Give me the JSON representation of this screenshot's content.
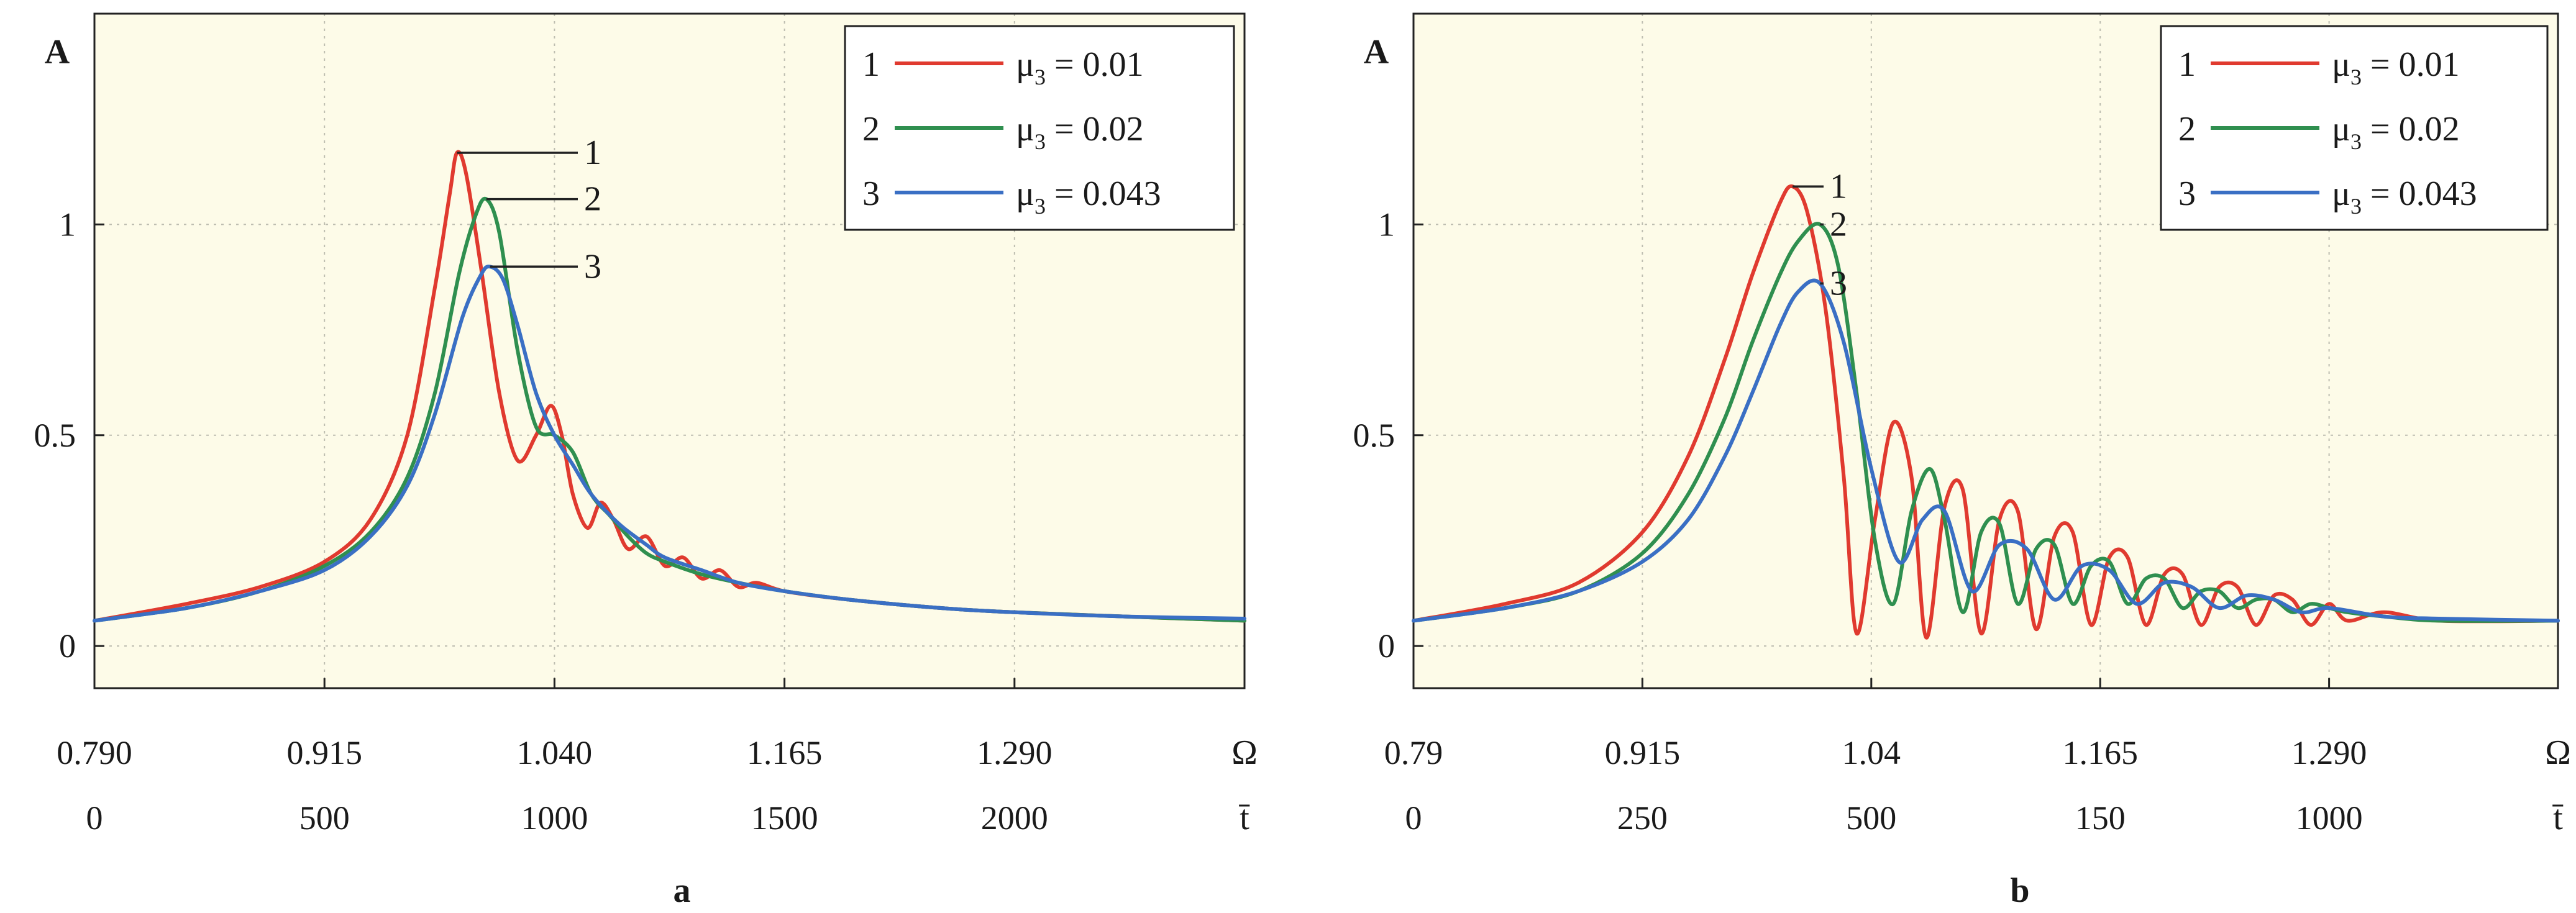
{
  "figure": {
    "panels": [
      {
        "id": "a",
        "panel_label": "a",
        "y_label": "A",
        "x_label": "Ω",
        "t_label": "t̄",
        "y_ticks": [
          "0",
          "0.5",
          "1"
        ],
        "x_ticks": [
          "0.790",
          "0.915",
          "1.040",
          "1.165",
          "1.290"
        ],
        "t_ticks": [
          "0",
          "500",
          "1000",
          "1500",
          "2000"
        ],
        "curve_labels": [
          "1",
          "2",
          "3"
        ],
        "legend": [
          {
            "num": "1",
            "mu": "μ",
            "sub": "3",
            "value": "= 0.01",
            "color": "#e03a2f"
          },
          {
            "num": "2",
            "mu": "μ",
            "sub": "3",
            "value": "= 0.02",
            "color": "#2f8f4f"
          },
          {
            "num": "3",
            "mu": "μ",
            "sub": "3",
            "value": "= 0.043",
            "color": "#3a6fc4"
          }
        ]
      },
      {
        "id": "b",
        "panel_label": "b",
        "y_label": "A",
        "x_label": "Ω",
        "t_label": "t̄",
        "y_ticks": [
          "0",
          "0.5",
          "1"
        ],
        "x_ticks": [
          "0.79",
          "0.915",
          "1.04",
          "1.165",
          "1.290"
        ],
        "t_ticks": [
          "0",
          "250",
          "500",
          "150",
          "1000"
        ],
        "curve_labels": [
          "1",
          "2",
          "3"
        ],
        "legend": [
          {
            "num": "1",
            "mu": "μ",
            "sub": "3",
            "value": "= 0.01",
            "color": "#e03a2f"
          },
          {
            "num": "2",
            "mu": "μ",
            "sub": "3",
            "value": "= 0.02",
            "color": "#2f8f4f"
          },
          {
            "num": "3",
            "mu": "μ",
            "sub": "3",
            "value": "= 0.043",
            "color": "#3a6fc4"
          }
        ]
      }
    ]
  },
  "chart_data": [
    {
      "type": "line",
      "panel": "a",
      "xlabel": "Ω",
      "ylabel": "A",
      "xlim": [
        0.79,
        1.415
      ],
      "ylim": [
        -0.1,
        1.5
      ],
      "xticks": [
        0.79,
        0.915,
        1.04,
        1.165,
        1.29
      ],
      "yticks": [
        0,
        0.5,
        1
      ],
      "secondary_x": {
        "label": "t̄",
        "ticks": [
          "0",
          "500",
          "1000",
          "1500",
          "2000"
        ]
      },
      "grid": true,
      "legend_position": "top-right",
      "series": [
        {
          "name": "μ3 = 0.01",
          "label": "1",
          "color": "#e03a2f",
          "peak": {
            "x": 0.987,
            "y": 1.17
          },
          "x": [
            0.79,
            0.84,
            0.88,
            0.915,
            0.94,
            0.96,
            0.975,
            0.983,
            0.987,
            0.992,
            1.0,
            1.01,
            1.02,
            1.03,
            1.038,
            1.044,
            1.05,
            1.058,
            1.065,
            1.072,
            1.08,
            1.09,
            1.1,
            1.11,
            1.12,
            1.13,
            1.14,
            1.15,
            1.165,
            1.2,
            1.25,
            1.29,
            1.35,
            1.415
          ],
          "y": [
            0.06,
            0.1,
            0.14,
            0.2,
            0.3,
            0.5,
            0.85,
            1.07,
            1.17,
            1.12,
            0.9,
            0.6,
            0.44,
            0.5,
            0.57,
            0.5,
            0.36,
            0.28,
            0.34,
            0.3,
            0.23,
            0.26,
            0.19,
            0.21,
            0.16,
            0.18,
            0.14,
            0.15,
            0.13,
            0.11,
            0.09,
            0.08,
            0.07,
            0.06
          ]
        },
        {
          "name": "μ3 = 0.02",
          "label": "2",
          "color": "#2f8f4f",
          "peak": {
            "x": 1.003,
            "y": 1.06
          },
          "x": [
            0.79,
            0.84,
            0.88,
            0.915,
            0.94,
            0.96,
            0.975,
            0.988,
            0.997,
            1.003,
            1.01,
            1.02,
            1.03,
            1.04,
            1.05,
            1.06,
            1.07,
            1.08,
            1.09,
            1.1,
            1.12,
            1.14,
            1.165,
            1.2,
            1.25,
            1.29,
            1.35,
            1.415
          ],
          "y": [
            0.06,
            0.09,
            0.13,
            0.19,
            0.27,
            0.4,
            0.6,
            0.88,
            1.02,
            1.06,
            0.98,
            0.7,
            0.52,
            0.5,
            0.46,
            0.36,
            0.31,
            0.26,
            0.22,
            0.2,
            0.17,
            0.15,
            0.13,
            0.11,
            0.09,
            0.08,
            0.07,
            0.06
          ]
        },
        {
          "name": "μ3 = 0.043",
          "label": "3",
          "color": "#3a6fc4",
          "peak": {
            "x": 1.005,
            "y": 0.9
          },
          "x": [
            0.79,
            0.84,
            0.88,
            0.915,
            0.94,
            0.96,
            0.975,
            0.99,
            1.0,
            1.005,
            1.012,
            1.02,
            1.03,
            1.04,
            1.05,
            1.06,
            1.075,
            1.09,
            1.1,
            1.12,
            1.14,
            1.165,
            1.2,
            1.25,
            1.29,
            1.35,
            1.415
          ],
          "y": [
            0.06,
            0.09,
            0.13,
            0.18,
            0.26,
            0.38,
            0.55,
            0.78,
            0.88,
            0.9,
            0.87,
            0.76,
            0.6,
            0.5,
            0.43,
            0.36,
            0.29,
            0.24,
            0.21,
            0.18,
            0.15,
            0.13,
            0.11,
            0.09,
            0.08,
            0.07,
            0.065
          ]
        }
      ]
    },
    {
      "type": "line",
      "panel": "b",
      "xlabel": "Ω",
      "ylabel": "A",
      "xlim": [
        0.79,
        1.415
      ],
      "ylim": [
        -0.1,
        1.5
      ],
      "xticks": [
        0.79,
        0.915,
        1.04,
        1.165,
        1.29
      ],
      "yticks": [
        0,
        0.5,
        1
      ],
      "secondary_x": {
        "label": "t̄",
        "ticks": [
          "0",
          "250",
          "500",
          "150",
          "1000"
        ]
      },
      "grid": true,
      "legend_position": "top-right",
      "series": [
        {
          "name": "μ3 = 0.01",
          "label": "1",
          "color": "#e03a2f",
          "peak": {
            "x": 0.997,
            "y": 1.09
          },
          "x": [
            0.79,
            0.84,
            0.88,
            0.915,
            0.94,
            0.96,
            0.975,
            0.99,
            0.997,
            1.005,
            1.015,
            1.025,
            1.032,
            1.042,
            1.052,
            1.062,
            1.07,
            1.08,
            1.09,
            1.1,
            1.11,
            1.12,
            1.13,
            1.14,
            1.15,
            1.16,
            1.17,
            1.18,
            1.19,
            1.2,
            1.21,
            1.22,
            1.23,
            1.24,
            1.25,
            1.26,
            1.27,
            1.28,
            1.29,
            1.3,
            1.32,
            1.35,
            1.415
          ],
          "y": [
            0.06,
            0.1,
            0.15,
            0.27,
            0.45,
            0.68,
            0.88,
            1.05,
            1.09,
            1.03,
            0.8,
            0.4,
            0.03,
            0.3,
            0.53,
            0.4,
            0.02,
            0.33,
            0.37,
            0.03,
            0.3,
            0.32,
            0.04,
            0.26,
            0.27,
            0.05,
            0.21,
            0.21,
            0.05,
            0.17,
            0.17,
            0.05,
            0.14,
            0.14,
            0.05,
            0.12,
            0.11,
            0.05,
            0.1,
            0.06,
            0.08,
            0.06,
            0.06
          ]
        },
        {
          "name": "μ3 = 0.02",
          "label": "2",
          "color": "#2f8f4f",
          "peak": {
            "x": 1.012,
            "y": 1.0
          },
          "x": [
            0.79,
            0.84,
            0.88,
            0.915,
            0.94,
            0.96,
            0.975,
            0.99,
            1.0,
            1.012,
            1.022,
            1.032,
            1.042,
            1.052,
            1.062,
            1.072,
            1.08,
            1.09,
            1.1,
            1.11,
            1.12,
            1.13,
            1.14,
            1.15,
            1.16,
            1.17,
            1.18,
            1.19,
            1.2,
            1.21,
            1.22,
            1.23,
            1.24,
            1.25,
            1.26,
            1.27,
            1.28,
            1.29,
            1.3,
            1.32,
            1.35,
            1.415
          ],
          "y": [
            0.06,
            0.09,
            0.13,
            0.22,
            0.36,
            0.54,
            0.72,
            0.88,
            0.96,
            1.0,
            0.9,
            0.6,
            0.25,
            0.1,
            0.32,
            0.42,
            0.3,
            0.08,
            0.27,
            0.29,
            0.1,
            0.23,
            0.24,
            0.1,
            0.19,
            0.2,
            0.1,
            0.16,
            0.16,
            0.09,
            0.13,
            0.13,
            0.09,
            0.11,
            0.11,
            0.08,
            0.1,
            0.09,
            0.08,
            0.07,
            0.06,
            0.06
          ]
        },
        {
          "name": "μ3 = 0.043",
          "label": "3",
          "color": "#3a6fc4",
          "peak": {
            "x": 1.012,
            "y": 0.86
          },
          "x": [
            0.79,
            0.84,
            0.88,
            0.915,
            0.94,
            0.96,
            0.975,
            0.99,
            1.0,
            1.012,
            1.025,
            1.04,
            1.055,
            1.068,
            1.08,
            1.095,
            1.11,
            1.125,
            1.14,
            1.155,
            1.17,
            1.185,
            1.2,
            1.215,
            1.23,
            1.245,
            1.26,
            1.275,
            1.29,
            1.32,
            1.35,
            1.415
          ],
          "y": [
            0.06,
            0.09,
            0.13,
            0.2,
            0.3,
            0.45,
            0.6,
            0.76,
            0.84,
            0.86,
            0.72,
            0.42,
            0.2,
            0.3,
            0.32,
            0.13,
            0.24,
            0.23,
            0.11,
            0.19,
            0.18,
            0.1,
            0.15,
            0.14,
            0.09,
            0.12,
            0.11,
            0.08,
            0.09,
            0.07,
            0.065,
            0.06
          ]
        }
      ]
    }
  ]
}
